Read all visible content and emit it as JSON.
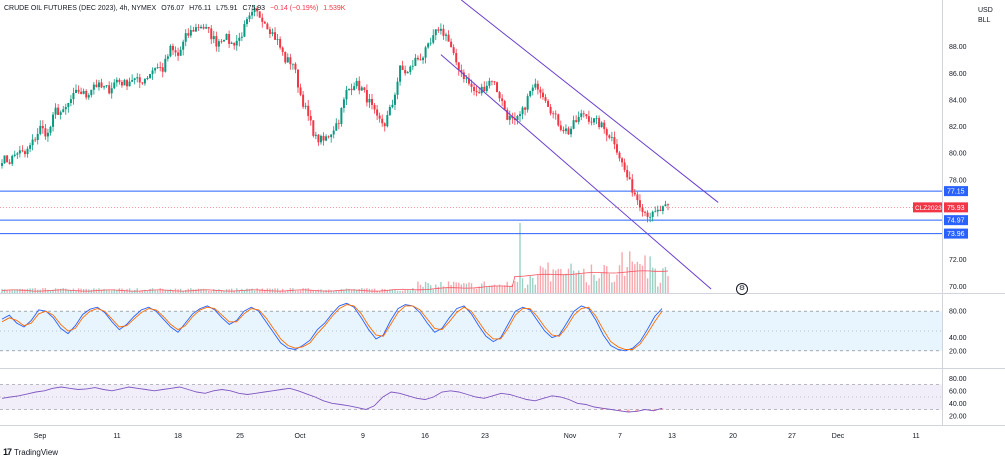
{
  "header": {
    "symbol": "CRUDE OIL FUTURES (DEC 2023), 4h, NYMEX",
    "open": "O76.07",
    "high": "H76.11",
    "low": "L75.91",
    "close": "C75.93",
    "change": "−0.14 (−0.19%)",
    "extra": "1.539K"
  },
  "currency": {
    "code": "USD",
    "unit": "BLL"
  },
  "brand": {
    "logo": "17",
    "name": "TradingView"
  },
  "settings_icon": "settings-icon",
  "chart_data": [
    {
      "type": "candlestick",
      "title": "",
      "ylabel": "",
      "ylim": [
        69.5,
        91.5
      ],
      "y_ticks": [
        "88.00",
        "86.00",
        "84.00",
        "82.00",
        "80.00",
        "78.00",
        "72.00",
        "70.00"
      ],
      "x_ticks": [
        "Sep",
        "11",
        "18",
        "25",
        "Oct",
        "9",
        "16",
        "23",
        "Nov",
        "7",
        "13",
        "20",
        "27",
        "Dec",
        "11"
      ],
      "close_series": [
        [
          0,
          79.6
        ],
        [
          3,
          79.4
        ],
        [
          6,
          80.1
        ],
        [
          9,
          79.9
        ],
        [
          12,
          80.8
        ],
        [
          15,
          81.9
        ],
        [
          18,
          81.4
        ],
        [
          21,
          83.2
        ],
        [
          24,
          83.0
        ],
        [
          27,
          84.0
        ],
        [
          30,
          84.7
        ],
        [
          33,
          84.3
        ],
        [
          36,
          85.2
        ],
        [
          39,
          84.9
        ],
        [
          42,
          84.8
        ],
        [
          45,
          85.5
        ],
        [
          48,
          85.2
        ],
        [
          51,
          85.6
        ],
        [
          54,
          85.3
        ],
        [
          57,
          85.8
        ],
        [
          60,
          86.5
        ],
        [
          63,
          86.3
        ],
        [
          66,
          87.8
        ],
        [
          69,
          87.3
        ],
        [
          72,
          88.7
        ],
        [
          75,
          89.3
        ],
        [
          78,
          89.6
        ],
        [
          81,
          89.1
        ],
        [
          84,
          88.3
        ],
        [
          87,
          88.8
        ],
        [
          90,
          88.2
        ],
        [
          93,
          88.6
        ],
        [
          96,
          89.8
        ],
        [
          99,
          90.6
        ],
        [
          102,
          90.2
        ],
        [
          105,
          89.3
        ],
        [
          108,
          88.4
        ],
        [
          111,
          87.0
        ],
        [
          114,
          86.8
        ],
        [
          117,
          84.4
        ],
        [
          120,
          82.7
        ],
        [
          123,
          81.1
        ],
        [
          126,
          80.9
        ],
        [
          129,
          81.6
        ],
        [
          132,
          82.5
        ],
        [
          135,
          84.6
        ],
        [
          138,
          85.3
        ],
        [
          141,
          84.8
        ],
        [
          144,
          83.8
        ],
        [
          147,
          82.5
        ],
        [
          150,
          82.2
        ],
        [
          153,
          83.7
        ],
        [
          156,
          86.3
        ],
        [
          159,
          86.0
        ],
        [
          162,
          87.0
        ],
        [
          165,
          87.3
        ],
        [
          168,
          88.2
        ],
        [
          171,
          89.4
        ],
        [
          174,
          88.9
        ],
        [
          177,
          87.2
        ],
        [
          180,
          86.1
        ],
        [
          183,
          85.2
        ],
        [
          186,
          84.4
        ],
        [
          189,
          85.0
        ],
        [
          192,
          85.6
        ],
        [
          195,
          84.3
        ],
        [
          198,
          82.8
        ],
        [
          201,
          82.2
        ],
        [
          204,
          83.1
        ],
        [
          207,
          84.6
        ],
        [
          210,
          85.1
        ],
        [
          213,
          84.2
        ],
        [
          216,
          82.9
        ],
        [
          219,
          82.0
        ],
        [
          222,
          81.6
        ],
        [
          225,
          82.4
        ],
        [
          228,
          83.0
        ],
        [
          231,
          82.5
        ],
        [
          234,
          82.2
        ],
        [
          237,
          81.6
        ],
        [
          240,
          80.9
        ],
        [
          243,
          79.2
        ],
        [
          246,
          77.7
        ],
        [
          249,
          76.6
        ],
        [
          252,
          75.6
        ],
        [
          255,
          75.3
        ],
        [
          258,
          75.7
        ],
        [
          261,
          75.9
        ]
      ],
      "horizontal_levels": [
        77.15,
        74.97,
        73.96
      ],
      "price_labels": [
        {
          "label": "77.15",
          "value": 77.15
        },
        {
          "label": "CLZ2023",
          "value": 75.93,
          "current": true
        },
        {
          "label": "75.93",
          "value": 75.93,
          "current": true
        },
        {
          "label": "74.97",
          "value": 74.97
        },
        {
          "label": "73.96",
          "value": 73.96
        }
      ],
      "channel": {
        "upper": [
          [
            180,
            91.5
          ],
          [
            265,
            76.3
          ]
        ],
        "lower": [
          [
            172,
            87.4
          ],
          [
            263,
            69.8
          ]
        ]
      },
      "colors": {
        "up": "#089981",
        "down": "#f23645",
        "line": "#2962ff",
        "channel": "#6a3fd1",
        "current": "#f23645"
      }
    },
    {
      "type": "line",
      "title": "",
      "ylim": [
        0,
        100
      ],
      "y_ticks": [
        "80.00",
        "40.00",
        "20.00"
      ],
      "bands": [
        20,
        80
      ],
      "series": [
        {
          "values": [
            68,
            74,
            62,
            56,
            66,
            82,
            80,
            70,
            54,
            46,
            58,
            75,
            83,
            86,
            78,
            64,
            52,
            60,
            72,
            82,
            86,
            80,
            68,
            56,
            48,
            62,
            76,
            84,
            88,
            82,
            70,
            60,
            66,
            80,
            86,
            80,
            64,
            48,
            32,
            24,
            22,
            28,
            36,
            52,
            62,
            76,
            88,
            92,
            86,
            70,
            52,
            38,
            44,
            66,
            84,
            90,
            88,
            78,
            62,
            48,
            54,
            70,
            84,
            88,
            76,
            58,
            42,
            34,
            40,
            60,
            80,
            86,
            82,
            66,
            50,
            40,
            44,
            62,
            80,
            88,
            84,
            66,
            44,
            28,
            22,
            20,
            24,
            34,
            52,
            72,
            84
          ]
        },
        {
          "values": [
            64,
            70,
            66,
            58,
            62,
            76,
            80,
            74,
            60,
            50,
            54,
            70,
            80,
            84,
            80,
            68,
            56,
            58,
            68,
            78,
            84,
            82,
            72,
            60,
            52,
            58,
            72,
            82,
            86,
            84,
            74,
            64,
            64,
            76,
            84,
            82,
            70,
            54,
            38,
            28,
            24,
            26,
            32,
            46,
            58,
            72,
            84,
            90,
            88,
            76,
            58,
            44,
            42,
            60,
            78,
            88,
            88,
            82,
            68,
            54,
            52,
            64,
            78,
            86,
            80,
            64,
            48,
            38,
            38,
            54,
            74,
            84,
            84,
            72,
            56,
            44,
            42,
            56,
            74,
            84,
            86,
            72,
            52,
            34,
            26,
            22,
            22,
            30,
            46,
            64,
            80
          ]
        }
      ]
    },
    {
      "type": "line",
      "title": "",
      "ylim": [
        10,
        90
      ],
      "y_ticks": [
        "80.00",
        "60.00",
        "40.00",
        "20.00"
      ],
      "bands": [
        30,
        70
      ],
      "series": [
        {
          "values": [
            48,
            50,
            52,
            55,
            58,
            60,
            64,
            66,
            64,
            62,
            63,
            65,
            62,
            60,
            63,
            66,
            64,
            62,
            60,
            62,
            64,
            66,
            62,
            58,
            56,
            60,
            62,
            60,
            56,
            54,
            56,
            58,
            60,
            62,
            64,
            60,
            55,
            50,
            44,
            40,
            38,
            36,
            33,
            30,
            36,
            50,
            58,
            56,
            52,
            48,
            46,
            50,
            58,
            60,
            58,
            54,
            50,
            48,
            52,
            56,
            54,
            50,
            46,
            44,
            48,
            52,
            50,
            46,
            40,
            38,
            34,
            32,
            30,
            28,
            26,
            27,
            30,
            28,
            32
          ]
        }
      ]
    }
  ]
}
